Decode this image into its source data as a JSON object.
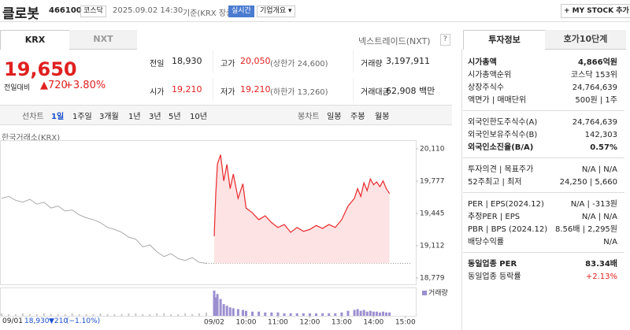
{
  "header": {
    "name": "클로봇",
    "code": "466100",
    "market": "코스닥",
    "datetime": "2025.09.02 14:30",
    "basis": "기준(KRX 장중)",
    "realtime": "실시간",
    "company": "기업개요 ▾",
    "mystock": "+ MY STOCK 추가"
  },
  "market_tabs": [
    "KRX",
    "NXT"
  ],
  "nxt_link": "넥스트레이드(NXT)",
  "help": "?",
  "price": {
    "now": "19,650",
    "change_label": "전일대비",
    "change": "▲720",
    "rate": "+3.80%"
  },
  "stats": [
    [
      {
        "label": "전일",
        "value": "18,930"
      },
      {
        "label": "고가",
        "value": "20,050",
        "sub": "(상한가 24,600)"
      },
      {
        "label": "거래량",
        "value": "3,197,911"
      }
    ],
    [
      {
        "label": "시가",
        "value": "19,210"
      },
      {
        "label": "저가",
        "value": "19,210",
        "sub": "(하한가 13,260)"
      },
      {
        "label": "거래대금",
        "value": "62,908 백만"
      }
    ]
  ],
  "periods": {
    "line_chart": "선차트",
    "line": [
      "1일",
      "1주일",
      "3개월",
      "1년",
      "3년",
      "5년",
      "10년"
    ],
    "candle_chart": "봉차트",
    "candle": [
      "일봉",
      "주봉",
      "월봉"
    ]
  },
  "chart": {
    "source": "한국거래소(KRX)",
    "ylim": [
      18779,
      20110
    ],
    "yticks": [
      {
        "value": 20110,
        "label": "20,110"
      },
      {
        "value": 19777,
        "label": "19,777"
      },
      {
        "value": 19445,
        "label": "19,445"
      },
      {
        "value": 19112,
        "label": "19,112"
      },
      {
        "value": 18779,
        "label": "18,779"
      }
    ],
    "prev_close": 18930,
    "xlim": [
      9,
      15.45
    ],
    "xticks": [
      {
        "value": 10,
        "label": "10:00"
      },
      {
        "value": 11,
        "label": "11:00"
      },
      {
        "value": 12,
        "label": "12:00"
      },
      {
        "value": 13,
        "label": "13:00"
      },
      {
        "value": 14,
        "label": "14:00"
      },
      {
        "value": 15,
        "label": "15:00"
      }
    ],
    "prev_date": "09/01",
    "today_date": "09/02",
    "volume_label": "거래량",
    "prev": {
      "values": [
        19600,
        19620,
        19580,
        19560,
        19590,
        19540,
        19560,
        19500,
        19520,
        19470,
        19480,
        19430,
        19400,
        19380,
        19350,
        19300,
        19280,
        19250,
        19200,
        19180,
        19100,
        19120,
        19050,
        19000,
        19030,
        18980,
        18960,
        18990,
        18940,
        18930
      ],
      "volume": [
        3,
        2,
        2,
        3,
        2,
        2,
        3,
        2,
        2,
        2,
        3,
        2,
        2,
        2,
        3,
        2,
        2,
        2,
        3,
        3,
        2,
        2,
        3,
        3,
        2,
        2,
        3,
        2,
        3,
        4
      ]
    },
    "today": {
      "x": [
        9,
        9.05,
        9.1,
        9.2,
        9.3,
        9.4,
        9.5,
        9.6,
        9.75,
        9.9,
        10,
        10.2,
        10.4,
        10.6,
        10.8,
        11,
        11.2,
        11.4,
        11.6,
        11.8,
        12,
        12.2,
        12.4,
        12.6,
        12.8,
        13,
        13.2,
        13.4,
        13.5,
        13.6,
        13.7,
        13.8,
        13.9,
        14,
        14.1,
        14.2,
        14.3,
        14.4,
        14.5
      ],
      "values": [
        19210,
        19650,
        19950,
        20050,
        19780,
        19950,
        19700,
        19850,
        19600,
        19750,
        19500,
        19450,
        19380,
        19420,
        19350,
        19300,
        19330,
        19250,
        19300,
        19260,
        19280,
        19320,
        19290,
        19330,
        19300,
        19380,
        19520,
        19600,
        19700,
        19620,
        19760,
        19680,
        19800,
        19740,
        19770,
        19720,
        19780,
        19700,
        19650
      ],
      "volume": [
        30,
        22,
        26,
        20,
        14,
        12,
        10,
        9,
        8,
        7,
        6,
        5,
        5,
        4,
        4,
        4,
        3,
        3,
        3,
        3,
        3,
        3,
        3,
        3,
        3,
        4,
        6,
        7,
        8,
        6,
        7,
        5,
        6,
        5,
        5,
        4,
        5,
        4,
        4
      ]
    }
  },
  "footer": {
    "date": "09/01",
    "price": "18,930",
    "change": "▼210",
    "rate": "(−1.10%)"
  },
  "invest": {
    "tabs": [
      "투자정보",
      "호가10단계"
    ],
    "groups": [
      [
        {
          "label": "시가총액",
          "value": "4,866억원",
          "bold": true
        },
        {
          "label": "시가총액순위",
          "value": "코스닥 153위"
        },
        {
          "label": "상장주식수",
          "value": "24,764,639"
        },
        {
          "label": "액면가 | 매매단위",
          "value": "500원 | 1주"
        }
      ],
      [
        {
          "label": "외국인한도주식수(A)",
          "value": "24,764,639"
        },
        {
          "label": "외국인보유주식수(B)",
          "value": "142,303"
        },
        {
          "label": "외국인소진율(B/A)",
          "value": "0.57%",
          "bold": true
        }
      ],
      [
        {
          "label": "투자의견 | 목표주가",
          "value": "N/A | N/A"
        },
        {
          "label": "52주최고 | 최저",
          "value": "24,250 | 5,660"
        }
      ],
      [
        {
          "label": "PER | EPS(2024.12)",
          "value": "N/A | -313원"
        },
        {
          "label": "추정PER | EPS",
          "value": "N/A | N/A"
        },
        {
          "label": "PBR | BPS (2024.12)",
          "value": "8.56배 | 2,295원"
        },
        {
          "label": "배당수익률",
          "value": "N/A"
        }
      ],
      [
        {
          "label": "동일업종 PER",
          "value": "83.34배",
          "bold": true
        },
        {
          "label": "동일업종 등락률",
          "value": "+2.13%",
          "color": "#e02020"
        }
      ]
    ]
  }
}
